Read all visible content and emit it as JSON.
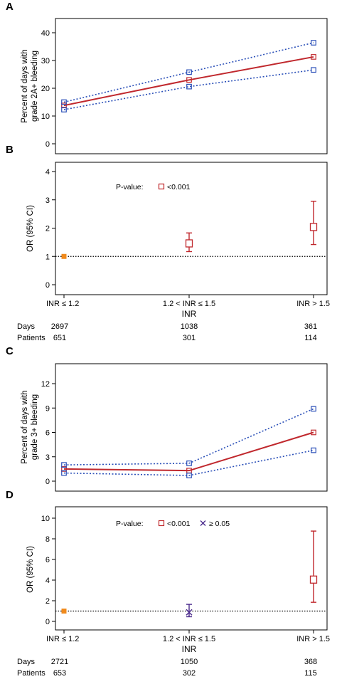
{
  "colors": {
    "estimate": "#c0282d",
    "ci": "#2a4fb8",
    "reference": "#f08a1c",
    "nonsig": "#4a2a8c",
    "axis": "#000000"
  },
  "panel_labels": [
    "A",
    "B",
    "C",
    "D"
  ],
  "x_categories": [
    "INR ≤ 1.2",
    "1.2 < INR ≤ 1.5",
    "INR > 1.5"
  ],
  "xlabel": "INR",
  "row_labels": {
    "days": "Days",
    "patients": "Patients"
  },
  "table_B": {
    "days": [
      "2697",
      "1038",
      "361"
    ],
    "patients": [
      "651",
      "301",
      "114"
    ]
  },
  "table_D": {
    "days": [
      "2721",
      "1050",
      "368"
    ],
    "patients": [
      "653",
      "302",
      "115"
    ]
  },
  "chart_data": [
    {
      "panel": "A",
      "type": "line",
      "ylabel": [
        "Percent of days with",
        "grade 2A+ bleeding"
      ],
      "ylim": [
        0,
        40
      ],
      "yticks": [
        "0",
        "10",
        "20",
        "30",
        "40"
      ],
      "series": [
        {
          "role": "estimate",
          "values": [
            13.8,
            23.0,
            31.3
          ]
        },
        {
          "role": "upper",
          "values": [
            15.0,
            25.8,
            36.4
          ]
        },
        {
          "role": "lower",
          "values": [
            12.3,
            20.6,
            26.6
          ]
        }
      ]
    },
    {
      "panel": "B",
      "type": "scatter",
      "ylabel": "OR (95% CI)",
      "ylim": [
        0,
        4
      ],
      "yticks": [
        "0",
        "1",
        "2",
        "3",
        "4"
      ],
      "reference_line": 1,
      "legend": {
        "title": "P-value:",
        "entries": [
          "<0.001"
        ]
      },
      "points": [
        {
          "kind": "reference",
          "y": 1.0
        },
        {
          "kind": "sig",
          "y": 1.46,
          "lo": 1.17,
          "hi": 1.83
        },
        {
          "kind": "sig",
          "y": 2.04,
          "lo": 1.42,
          "hi": 2.95
        }
      ]
    },
    {
      "panel": "C",
      "type": "line",
      "ylabel": [
        "Percent of days with",
        "grade 3+ bleeding"
      ],
      "ylim": [
        0,
        12
      ],
      "yticks": [
        "0",
        "3",
        "6",
        "9",
        "12"
      ],
      "series": [
        {
          "role": "estimate",
          "values": [
            1.5,
            1.3,
            6.0
          ]
        },
        {
          "role": "upper",
          "values": [
            2.0,
            2.2,
            8.9
          ]
        },
        {
          "role": "lower",
          "values": [
            1.0,
            0.7,
            3.8
          ]
        }
      ]
    },
    {
      "panel": "D",
      "type": "scatter",
      "ylabel": "OR (95% CI)",
      "ylim": [
        0,
        10
      ],
      "yticks": [
        "0",
        "2",
        "4",
        "6",
        "8",
        "10"
      ],
      "reference_line": 1,
      "legend": {
        "title": "P-value:",
        "entries": [
          "<0.001",
          "≥ 0.05"
        ]
      },
      "points": [
        {
          "kind": "reference",
          "y": 1.0
        },
        {
          "kind": "nonsig",
          "y": 0.88,
          "lo": 0.45,
          "hi": 1.65
        },
        {
          "kind": "sig",
          "y": 4.05,
          "lo": 1.85,
          "hi": 8.75
        }
      ]
    }
  ]
}
